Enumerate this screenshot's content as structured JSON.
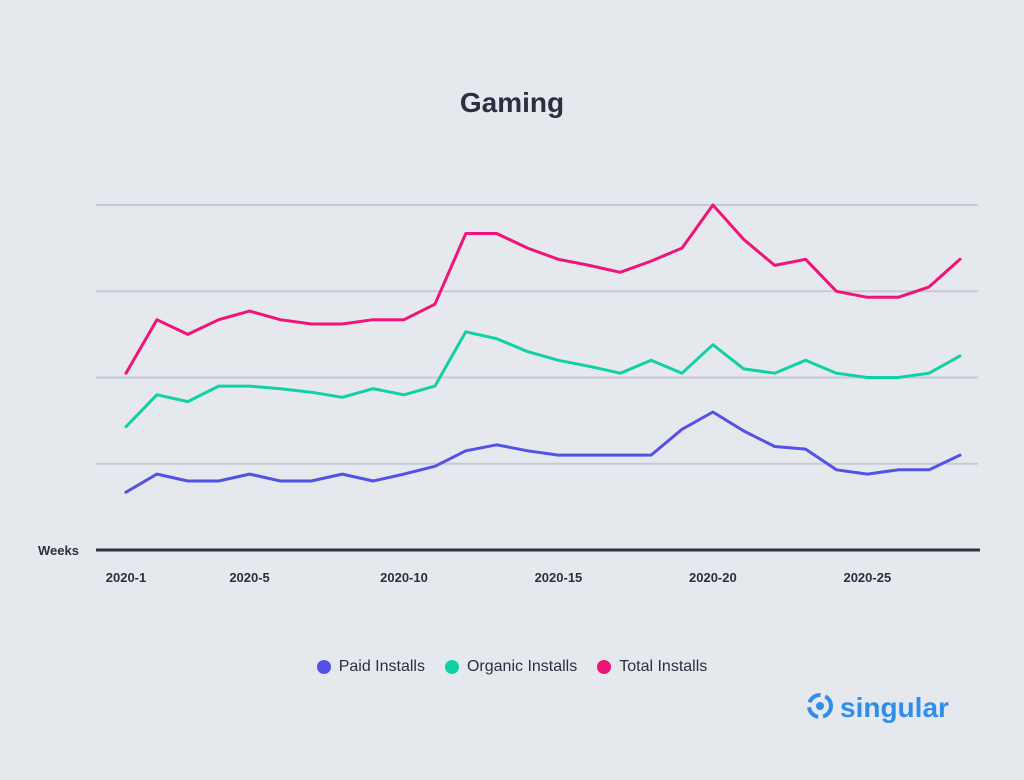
{
  "chart_data": {
    "type": "line",
    "title": "Gaming",
    "xlabel": "Weeks",
    "ylabel": "",
    "x": [
      "2020-1",
      "2020-2",
      "2020-3",
      "2020-4",
      "2020-5",
      "2020-6",
      "2020-7",
      "2020-8",
      "2020-9",
      "2020-10",
      "2020-11",
      "2020-12",
      "2020-13",
      "2020-14",
      "2020-15",
      "2020-16",
      "2020-17",
      "2020-18",
      "2020-19",
      "2020-20",
      "2020-21",
      "2020-22",
      "2020-23",
      "2020-24",
      "2020-25",
      "2020-26",
      "2020-27",
      "2020-28"
    ],
    "x_tick_labels": [
      "2020-1",
      "2020-5",
      "2020-10",
      "2020-15",
      "2020-20",
      "2020-25"
    ],
    "ylim": [
      0,
      4
    ],
    "y_ticks": [
      1,
      2,
      3,
      4
    ],
    "grid": true,
    "legend_placement": "bottom-center",
    "series": [
      {
        "name": "Paid Installs",
        "color": "#5452e6",
        "values": [
          0.67,
          0.88,
          0.8,
          0.8,
          0.88,
          0.8,
          0.8,
          0.88,
          0.8,
          0.88,
          0.97,
          1.15,
          1.22,
          1.15,
          1.1,
          1.1,
          1.1,
          1.1,
          1.4,
          1.6,
          1.38,
          1.2,
          1.17,
          0.93,
          0.88,
          0.93,
          0.93,
          1.1
        ]
      },
      {
        "name": "Organic Installs",
        "color": "#12d0a5",
        "values": [
          1.43,
          1.8,
          1.72,
          1.9,
          1.9,
          1.87,
          1.83,
          1.77,
          1.87,
          1.8,
          1.9,
          2.53,
          2.45,
          2.3,
          2.2,
          2.13,
          2.05,
          2.2,
          2.05,
          2.38,
          2.1,
          2.05,
          2.2,
          2.05,
          2.0,
          2.0,
          2.05,
          2.25
        ]
      },
      {
        "name": "Total Installs",
        "color": "#f0147a",
        "values": [
          2.05,
          2.67,
          2.5,
          2.67,
          2.77,
          2.67,
          2.62,
          2.62,
          2.67,
          2.67,
          2.85,
          3.67,
          3.67,
          3.5,
          3.37,
          3.3,
          3.22,
          3.35,
          3.5,
          4.0,
          3.6,
          3.3,
          3.37,
          3.0,
          2.93,
          2.93,
          3.05,
          3.37
        ]
      }
    ]
  },
  "brand": {
    "name": "singular",
    "color": "#2f8ee8",
    "icon": "singular-logo-icon"
  }
}
